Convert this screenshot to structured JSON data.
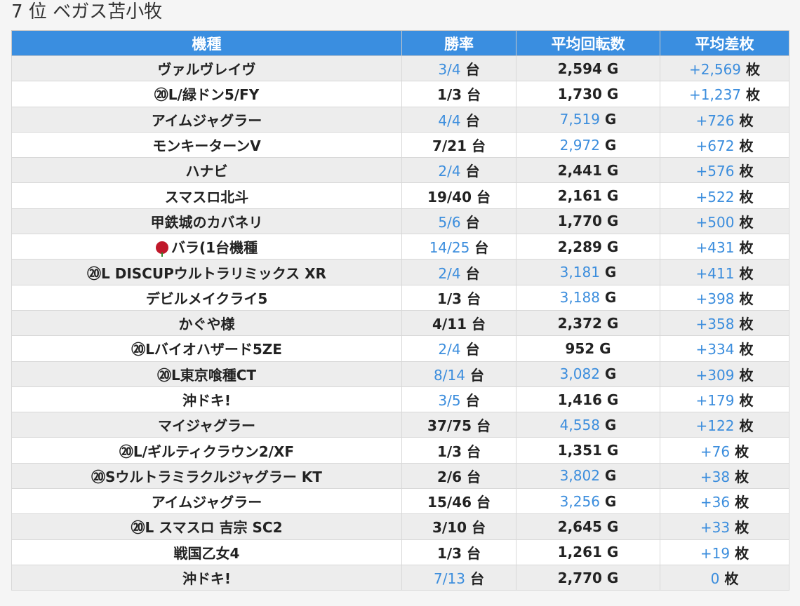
{
  "title": "7 位 ベガス苫小牧",
  "headers": {
    "model": "機種",
    "win_rate": "勝率",
    "avg_spins": "平均回転数",
    "avg_diff": "平均差枚"
  },
  "units": {
    "dai": "台",
    "g": "G",
    "mai": "枚"
  },
  "rows": [
    {
      "model": "ヴァルヴレイヴ",
      "win": "3/4",
      "win_hl": true,
      "spins": "2,594",
      "spins_hl": false,
      "diff": "+2,569",
      "diff_hl": true
    },
    {
      "model": "⑳L/緑ドン5/FY",
      "win": "1/3",
      "win_hl": false,
      "spins": "1,730",
      "spins_hl": false,
      "diff": "+1,237",
      "diff_hl": true
    },
    {
      "model": "アイムジャグラー",
      "win": "4/4",
      "win_hl": true,
      "spins": "7,519",
      "spins_hl": true,
      "diff": "+726",
      "diff_hl": true
    },
    {
      "model": "モンキーターンV",
      "win": "7/21",
      "win_hl": false,
      "spins": "2,972",
      "spins_hl": true,
      "diff": "+672",
      "diff_hl": true
    },
    {
      "model": "ハナビ",
      "win": "2/4",
      "win_hl": true,
      "spins": "2,441",
      "spins_hl": false,
      "diff": "+576",
      "diff_hl": true
    },
    {
      "model": "スマスロ北斗",
      "win": "19/40",
      "win_hl": false,
      "spins": "2,161",
      "spins_hl": false,
      "diff": "+522",
      "diff_hl": true
    },
    {
      "model": "甲鉄城のカバネリ",
      "win": "5/6",
      "win_hl": true,
      "spins": "1,770",
      "spins_hl": false,
      "diff": "+500",
      "diff_hl": true
    },
    {
      "model": "バラ(1台機種",
      "rose": true,
      "win": "14/25",
      "win_hl": true,
      "spins": "2,289",
      "spins_hl": false,
      "diff": "+431",
      "diff_hl": true
    },
    {
      "model": "⑳L DISCUPウルトラリミックス XR",
      "win": "2/4",
      "win_hl": true,
      "spins": "3,181",
      "spins_hl": true,
      "diff": "+411",
      "diff_hl": true
    },
    {
      "model": "デビルメイクライ5",
      "win": "1/3",
      "win_hl": false,
      "spins": "3,188",
      "spins_hl": true,
      "diff": "+398",
      "diff_hl": true
    },
    {
      "model": "かぐや様",
      "win": "4/11",
      "win_hl": false,
      "spins": "2,372",
      "spins_hl": false,
      "diff": "+358",
      "diff_hl": true
    },
    {
      "model": "⑳Lバイオハザード5ZE",
      "win": "2/4",
      "win_hl": true,
      "spins": "952",
      "spins_hl": false,
      "diff": "+334",
      "diff_hl": true
    },
    {
      "model": "⑳L東京喰種CT",
      "win": "8/14",
      "win_hl": true,
      "spins": "3,082",
      "spins_hl": true,
      "diff": "+309",
      "diff_hl": true
    },
    {
      "model": "沖ドキ!",
      "win": "3/5",
      "win_hl": true,
      "spins": "1,416",
      "spins_hl": false,
      "diff": "+179",
      "diff_hl": true
    },
    {
      "model": "マイジャグラー",
      "win": "37/75",
      "win_hl": false,
      "spins": "4,558",
      "spins_hl": true,
      "diff": "+122",
      "diff_hl": true
    },
    {
      "model": "⑳L/ギルティクラウン2/XF",
      "win": "1/3",
      "win_hl": false,
      "spins": "1,351",
      "spins_hl": false,
      "diff": "+76",
      "diff_hl": true
    },
    {
      "model": "⑳Sウルトラミラクルジャグラー KT",
      "win": "2/6",
      "win_hl": false,
      "spins": "3,802",
      "spins_hl": true,
      "diff": "+38",
      "diff_hl": true
    },
    {
      "model": "アイムジャグラー",
      "win": "15/46",
      "win_hl": false,
      "spins": "3,256",
      "spins_hl": true,
      "diff": "+36",
      "diff_hl": true
    },
    {
      "model": "⑳L スマスロ 吉宗 SC2",
      "win": "3/10",
      "win_hl": false,
      "spins": "2,645",
      "spins_hl": false,
      "diff": "+33",
      "diff_hl": true
    },
    {
      "model": "戦国乙女4",
      "win": "1/3",
      "win_hl": false,
      "spins": "1,261",
      "spins_hl": false,
      "diff": "+19",
      "diff_hl": true
    },
    {
      "model": "沖ドキ!",
      "win": "7/13",
      "win_hl": true,
      "spins": "2,770",
      "spins_hl": false,
      "diff": "0",
      "diff_hl": true
    }
  ],
  "colors": {
    "header_bg": "#3a8ee0",
    "highlight": "#3b8ddd",
    "row_odd": "#ededed",
    "row_even": "#ffffff"
  }
}
